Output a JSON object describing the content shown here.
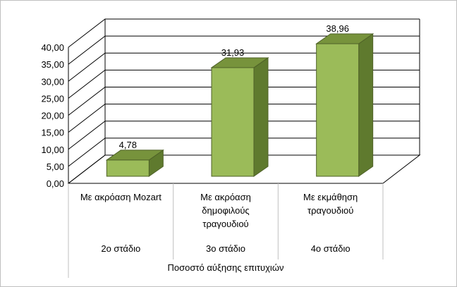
{
  "chart_data": {
    "type": "bar",
    "style": "3d-column",
    "categories": [
      [
        "Με ακρόαση Mozart"
      ],
      [
        "Με ακρόαση",
        "δημοφιλούς",
        "τραγουδιού"
      ],
      [
        "Με εκμάθηση",
        "τραγουδιού"
      ]
    ],
    "stages": [
      "2ο στάδιο",
      "3ο στάδιο",
      "4ο στάδιο"
    ],
    "group_label": "Ποσοστό αύξησης επιτυχιών",
    "values": [
      4.78,
      31.93,
      38.96
    ],
    "value_labels": [
      "4,78",
      "31,93",
      "38,96"
    ],
    "ylim": [
      0,
      40
    ],
    "yticks": [
      "0,00",
      "5,00",
      "10,00",
      "15,00",
      "20,00",
      "25,00",
      "30,00",
      "35,00",
      "40,00"
    ],
    "grid": true,
    "legend": "none",
    "colors": {
      "bar_front": "#9bbb59",
      "bar_side": "#5f7a2e",
      "bar_top": "#77933c",
      "bar_edge": "#4f6228",
      "grid": "#000000",
      "frame": "#bfbfbf"
    }
  }
}
